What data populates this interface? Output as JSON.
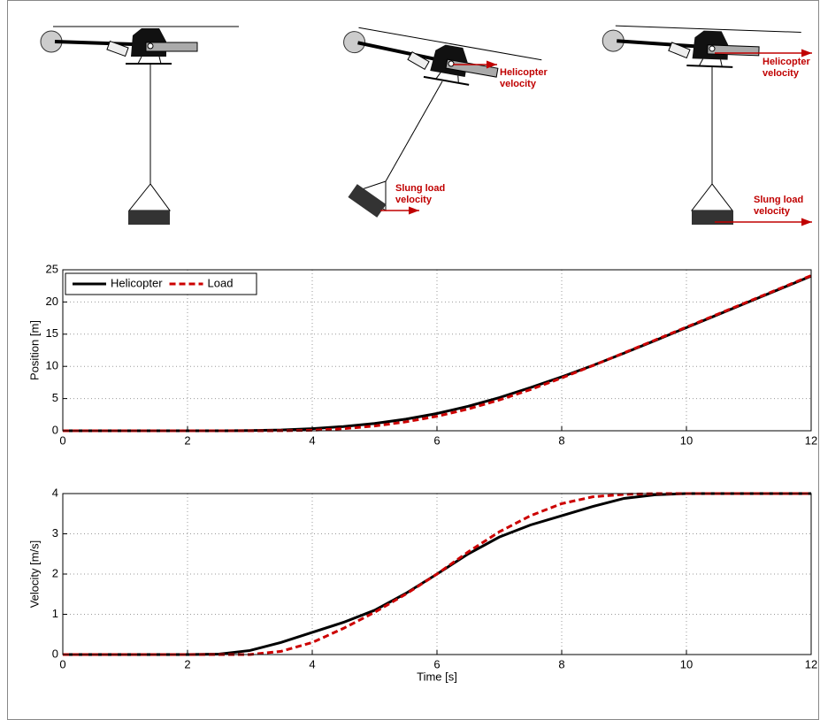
{
  "illustration": {
    "labels": [
      [
        "Helicopter",
        "velocity"
      ],
      [
        "Slung load",
        "velocity"
      ],
      [
        "Helicopter",
        "velocity"
      ],
      [
        "Slung load",
        "velocity"
      ]
    ]
  },
  "chart_data": [
    {
      "type": "line",
      "ylabel": "Position [m]",
      "x": [
        0,
        0.5,
        1,
        1.5,
        2,
        2.5,
        3,
        3.5,
        4,
        4.5,
        5,
        5.5,
        6,
        6.5,
        7,
        7.5,
        8,
        8.5,
        9,
        9.5,
        10,
        10.5,
        11,
        11.5,
        12
      ],
      "series": [
        {
          "name": "Helicopter",
          "color": "#000000",
          "values": [
            0,
            0,
            0,
            0,
            0,
            0,
            0.03,
            0.12,
            0.33,
            0.66,
            1.13,
            1.8,
            2.68,
            3.8,
            5.15,
            6.7,
            8.37,
            10.15,
            12.05,
            14.02,
            16.02,
            18.02,
            20.02,
            22.02,
            24.02
          ]
        },
        {
          "name": "Load",
          "color": "#cc0000",
          "values": [
            0,
            0,
            0,
            0,
            0,
            0,
            0,
            0.01,
            0.08,
            0.32,
            0.74,
            1.38,
            2.25,
            3.38,
            4.78,
            6.4,
            8.2,
            10.12,
            12.1,
            14.1,
            16.1,
            18.1,
            20.1,
            22.1,
            24.1
          ]
        }
      ],
      "xlim": [
        0,
        12
      ],
      "xticks": [
        0,
        2,
        4,
        6,
        8,
        10,
        12
      ],
      "ylim": [
        0,
        25
      ],
      "yticks": [
        0,
        5,
        10,
        15,
        20,
        25
      ],
      "grid": true,
      "legend": "upper-left"
    },
    {
      "type": "line",
      "xlabel": "Time [s]",
      "ylabel": "Velocity [m/s]",
      "x": [
        0,
        0.5,
        1,
        1.5,
        2,
        2.5,
        3,
        3.5,
        4,
        4.5,
        5,
        5.5,
        6,
        6.5,
        7,
        7.5,
        8,
        8.5,
        9,
        9.5,
        10,
        10.5,
        11,
        11.5,
        12
      ],
      "series": [
        {
          "name": "Helicopter",
          "color": "#000000",
          "values": [
            0,
            0,
            0,
            0,
            0,
            0.01,
            0.1,
            0.3,
            0.55,
            0.8,
            1.1,
            1.52,
            2.0,
            2.5,
            2.92,
            3.22,
            3.45,
            3.68,
            3.88,
            3.97,
            4,
            4,
            4,
            4,
            4
          ]
        },
        {
          "name": "Load",
          "color": "#cc0000",
          "values": [
            0,
            0,
            0,
            0,
            0,
            0,
            0,
            0.08,
            0.3,
            0.65,
            1.05,
            1.5,
            2.0,
            2.55,
            3.05,
            3.45,
            3.75,
            3.92,
            3.98,
            4,
            4,
            4,
            4,
            4,
            4
          ]
        }
      ],
      "xlim": [
        0,
        12
      ],
      "xticks": [
        0,
        2,
        4,
        6,
        8,
        10,
        12
      ],
      "ylim": [
        0,
        4
      ],
      "yticks": [
        0,
        1,
        2,
        3,
        4
      ],
      "grid": true
    }
  ]
}
